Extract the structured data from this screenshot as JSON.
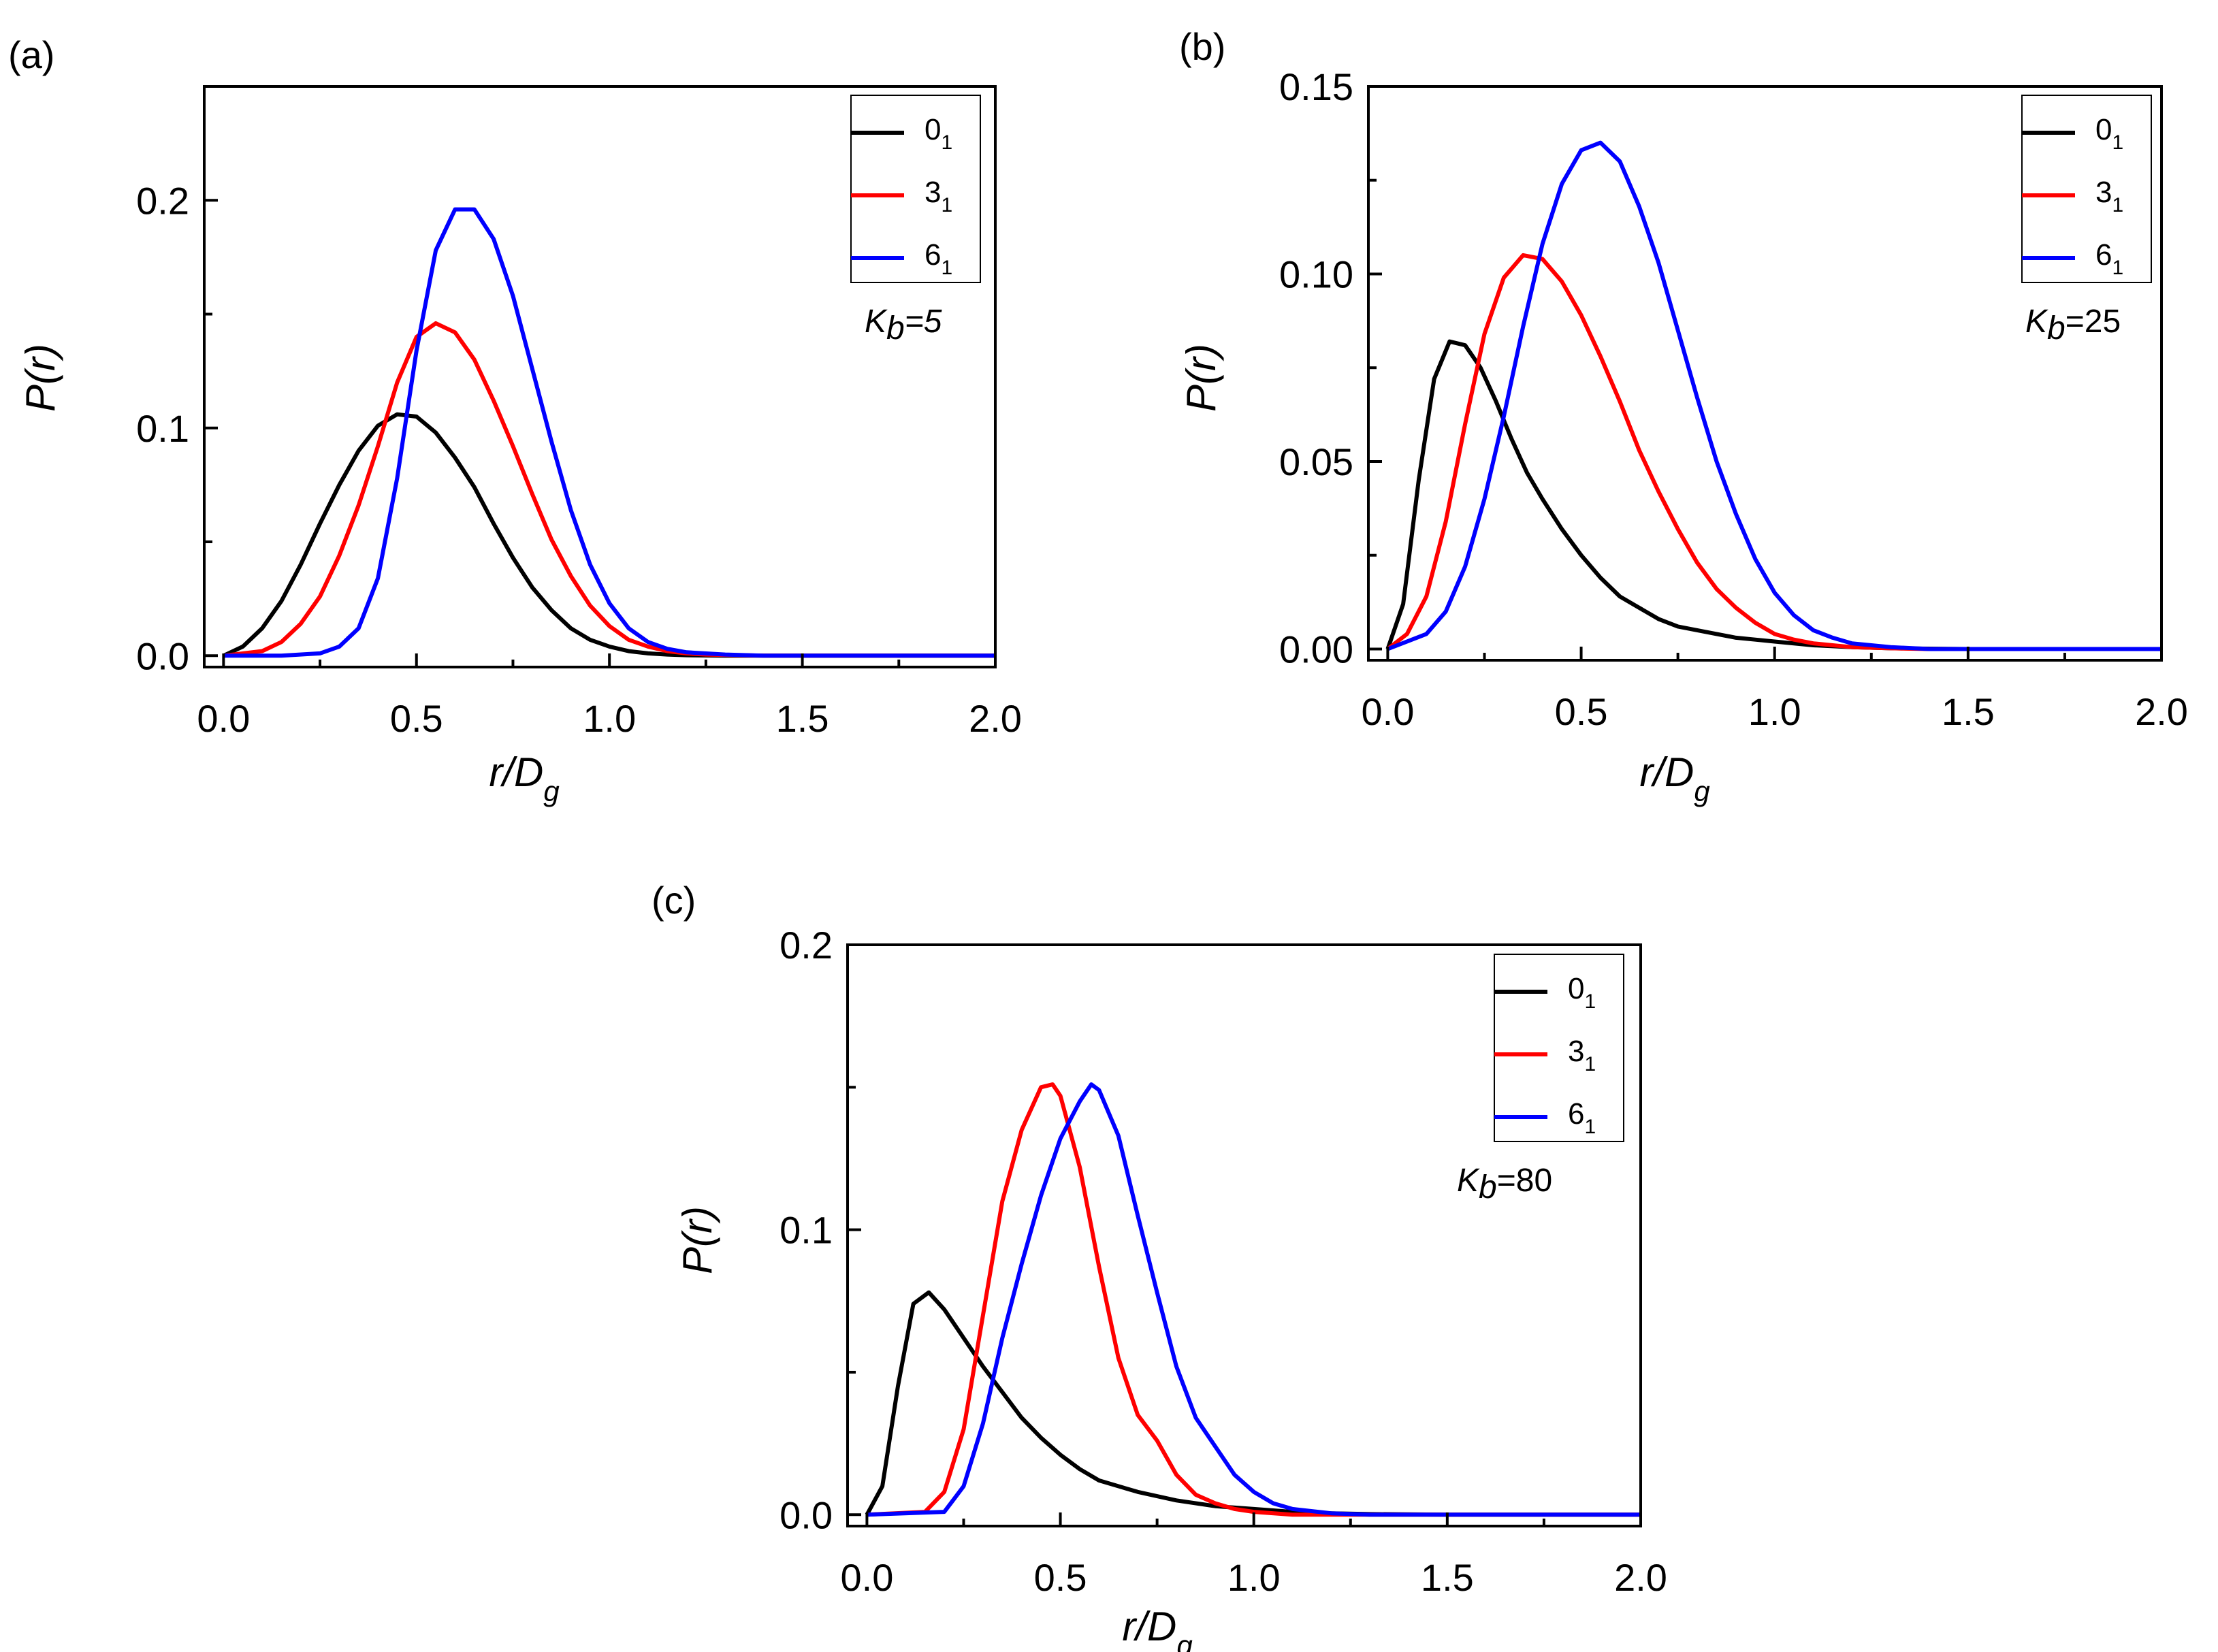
{
  "colors": {
    "series_0": "#000000",
    "series_1": "#ff0000",
    "series_2": "#0000ff",
    "axis": "#000000"
  },
  "chart_data": [
    {
      "id": "a",
      "panel_label": "(a)",
      "type": "line",
      "title": "",
      "xlabel": "r/D",
      "xlabel_sub": "g",
      "ylabel": "P(r)",
      "xlim": [
        -0.05,
        2.0
      ],
      "ylim": [
        -0.005,
        0.25
      ],
      "xticks": [
        0.0,
        0.5,
        1.0,
        1.5,
        2.0
      ],
      "xtick_labels": [
        "0.0",
        "0.5",
        "1.0",
        "1.5",
        "2.0"
      ],
      "yticks": [
        0.0,
        0.1,
        0.2
      ],
      "ytick_labels": [
        "0.0",
        "0.1",
        "0.2"
      ],
      "ymidticks": [
        0.05,
        0.15
      ],
      "kb_label": {
        "main": "K",
        "sub": "b",
        "rest": "=5",
        "rest_italic": true
      },
      "series": [
        {
          "name": "0",
          "name_sub": "1",
          "color": "#000000",
          "x": [
            0.0,
            0.05,
            0.1,
            0.15,
            0.2,
            0.25,
            0.3,
            0.35,
            0.4,
            0.45,
            0.5,
            0.55,
            0.6,
            0.65,
            0.7,
            0.75,
            0.8,
            0.85,
            0.9,
            0.95,
            1.0,
            1.05,
            1.1,
            1.15,
            1.2,
            1.3,
            1.4,
            1.6,
            2.0
          ],
          "y": [
            0.0,
            0.004,
            0.012,
            0.024,
            0.04,
            0.058,
            0.075,
            0.09,
            0.101,
            0.106,
            0.105,
            0.098,
            0.087,
            0.074,
            0.058,
            0.043,
            0.03,
            0.02,
            0.012,
            0.007,
            0.004,
            0.002,
            0.001,
            0.0005,
            0.0002,
            0.0,
            0.0,
            0.0,
            0.0
          ]
        },
        {
          "name": "3",
          "name_sub": "1",
          "color": "#ff0000",
          "x": [
            0.0,
            0.1,
            0.15,
            0.2,
            0.25,
            0.3,
            0.35,
            0.4,
            0.45,
            0.5,
            0.55,
            0.6,
            0.65,
            0.7,
            0.75,
            0.8,
            0.85,
            0.9,
            0.95,
            1.0,
            1.05,
            1.1,
            1.15,
            1.2,
            1.25,
            1.4,
            2.0
          ],
          "y": [
            0.0,
            0.002,
            0.006,
            0.014,
            0.026,
            0.044,
            0.066,
            0.092,
            0.12,
            0.14,
            0.146,
            0.142,
            0.13,
            0.112,
            0.092,
            0.071,
            0.051,
            0.035,
            0.022,
            0.013,
            0.007,
            0.004,
            0.002,
            0.001,
            0.0005,
            0.0,
            0.0
          ]
        },
        {
          "name": "6",
          "name_sub": "1",
          "color": "#0000ff",
          "x": [
            0.0,
            0.15,
            0.25,
            0.3,
            0.35,
            0.4,
            0.45,
            0.5,
            0.55,
            0.6,
            0.65,
            0.7,
            0.75,
            0.8,
            0.85,
            0.9,
            0.95,
            1.0,
            1.05,
            1.1,
            1.15,
            1.2,
            1.3,
            1.4,
            2.0
          ],
          "y": [
            0.0,
            0.0,
            0.001,
            0.004,
            0.012,
            0.034,
            0.078,
            0.134,
            0.178,
            0.196,
            0.196,
            0.183,
            0.158,
            0.126,
            0.094,
            0.064,
            0.04,
            0.023,
            0.012,
            0.006,
            0.003,
            0.0015,
            0.0005,
            0.0,
            0.0
          ]
        }
      ]
    },
    {
      "id": "b",
      "panel_label": "(b)",
      "type": "line",
      "title": "",
      "xlabel": "r/D",
      "xlabel_sub": "g",
      "ylabel": "P(r)",
      "xlim": [
        -0.05,
        2.0
      ],
      "ylim": [
        -0.003,
        0.15
      ],
      "xticks": [
        0.0,
        0.5,
        1.0,
        1.5,
        2.0
      ],
      "xtick_labels": [
        "0.0",
        "0.5",
        "1.0",
        "1.5",
        "2.0"
      ],
      "yticks": [
        0.0,
        0.05,
        0.1,
        0.15
      ],
      "ytick_labels": [
        "0.00",
        "0.05",
        "0.10",
        "0.15"
      ],
      "ymidticks": [
        0.025,
        0.075,
        0.125
      ],
      "kb_label": {
        "main": "K",
        "sub": "b",
        "rest": "=25",
        "rest_italic": false
      },
      "series": [
        {
          "name": "0",
          "name_sub": "1",
          "color": "#000000",
          "x": [
            0.0,
            0.04,
            0.08,
            0.12,
            0.16,
            0.2,
            0.24,
            0.28,
            0.32,
            0.36,
            0.4,
            0.45,
            0.5,
            0.55,
            0.6,
            0.65,
            0.7,
            0.75,
            0.8,
            0.85,
            0.9,
            0.95,
            1.0,
            1.1,
            1.2,
            1.3,
            1.5,
            2.0
          ],
          "y": [
            0.0,
            0.012,
            0.045,
            0.072,
            0.082,
            0.081,
            0.075,
            0.066,
            0.056,
            0.047,
            0.04,
            0.032,
            0.025,
            0.019,
            0.014,
            0.011,
            0.008,
            0.006,
            0.005,
            0.004,
            0.003,
            0.0025,
            0.002,
            0.001,
            0.0005,
            0.0002,
            0.0,
            0.0
          ]
        },
        {
          "name": "3",
          "name_sub": "1",
          "color": "#ff0000",
          "x": [
            0.0,
            0.05,
            0.1,
            0.15,
            0.2,
            0.25,
            0.3,
            0.35,
            0.4,
            0.45,
            0.5,
            0.55,
            0.6,
            0.65,
            0.7,
            0.75,
            0.8,
            0.85,
            0.9,
            0.95,
            1.0,
            1.05,
            1.1,
            1.15,
            1.2,
            1.3,
            1.4,
            2.0
          ],
          "y": [
            0.0,
            0.004,
            0.014,
            0.034,
            0.06,
            0.084,
            0.099,
            0.105,
            0.104,
            0.098,
            0.089,
            0.078,
            0.066,
            0.053,
            0.042,
            0.032,
            0.023,
            0.016,
            0.011,
            0.007,
            0.004,
            0.0025,
            0.0015,
            0.001,
            0.0005,
            0.0002,
            0.0,
            0.0
          ]
        },
        {
          "name": "6",
          "name_sub": "1",
          "color": "#0000ff",
          "x": [
            0.0,
            0.1,
            0.15,
            0.2,
            0.25,
            0.3,
            0.35,
            0.4,
            0.45,
            0.5,
            0.55,
            0.6,
            0.65,
            0.7,
            0.75,
            0.8,
            0.85,
            0.9,
            0.95,
            1.0,
            1.05,
            1.1,
            1.15,
            1.2,
            1.3,
            1.4,
            2.0
          ],
          "y": [
            0.0,
            0.004,
            0.01,
            0.022,
            0.04,
            0.062,
            0.086,
            0.108,
            0.124,
            0.133,
            0.135,
            0.13,
            0.118,
            0.103,
            0.085,
            0.067,
            0.05,
            0.036,
            0.024,
            0.015,
            0.009,
            0.005,
            0.003,
            0.0015,
            0.0005,
            0.0,
            0.0
          ]
        }
      ]
    },
    {
      "id": "c",
      "panel_label": "(c)",
      "type": "line",
      "title": "",
      "xlabel": "r/D",
      "xlabel_sub": "g",
      "ylabel": "P(r)",
      "xlim": [
        -0.05,
        2.0
      ],
      "ylim": [
        -0.004,
        0.2
      ],
      "xticks": [
        0.0,
        0.5,
        1.0,
        1.5,
        2.0
      ],
      "xtick_labels": [
        "0.0",
        "0.5",
        "1.0",
        "1.5",
        "2.0"
      ],
      "yticks": [
        0.0,
        0.1,
        0.2
      ],
      "ytick_labels": [
        "0.0",
        "0.1",
        "0.2"
      ],
      "ymidticks": [
        0.05,
        0.15
      ],
      "kb_label": {
        "main": "K",
        "sub": "b",
        "rest": "=80",
        "rest_italic": false
      },
      "series": [
        {
          "name": "0",
          "name_sub": "1",
          "color": "#000000",
          "x": [
            0.0,
            0.04,
            0.08,
            0.12,
            0.16,
            0.2,
            0.25,
            0.3,
            0.35,
            0.4,
            0.45,
            0.5,
            0.55,
            0.6,
            0.7,
            0.8,
            0.9,
            1.0,
            1.1,
            1.2,
            1.3,
            1.5,
            2.0
          ],
          "y": [
            0.0,
            0.01,
            0.045,
            0.074,
            0.078,
            0.072,
            0.062,
            0.052,
            0.043,
            0.034,
            0.027,
            0.021,
            0.016,
            0.012,
            0.008,
            0.005,
            0.003,
            0.002,
            0.001,
            0.0005,
            0.0002,
            0.0,
            0.0
          ]
        },
        {
          "name": "3",
          "name_sub": "1",
          "color": "#ff0000",
          "x": [
            0.0,
            0.15,
            0.2,
            0.25,
            0.3,
            0.35,
            0.4,
            0.45,
            0.48,
            0.5,
            0.55,
            0.6,
            0.65,
            0.7,
            0.75,
            0.8,
            0.85,
            0.9,
            0.95,
            1.0,
            1.1,
            1.2,
            2.0
          ],
          "y": [
            0.0,
            0.001,
            0.008,
            0.03,
            0.07,
            0.11,
            0.135,
            0.15,
            0.151,
            0.147,
            0.122,
            0.087,
            0.055,
            0.035,
            0.026,
            0.014,
            0.007,
            0.004,
            0.002,
            0.001,
            0.0,
            0.0,
            0.0
          ]
        },
        {
          "name": "6",
          "name_sub": "1",
          "color": "#0000ff",
          "x": [
            0.0,
            0.2,
            0.25,
            0.3,
            0.35,
            0.4,
            0.45,
            0.5,
            0.55,
            0.58,
            0.6,
            0.65,
            0.7,
            0.75,
            0.8,
            0.85,
            0.9,
            0.95,
            1.0,
            1.05,
            1.1,
            1.2,
            1.3,
            2.0
          ],
          "y": [
            0.0,
            0.001,
            0.01,
            0.032,
            0.062,
            0.088,
            0.112,
            0.132,
            0.145,
            0.151,
            0.149,
            0.133,
            0.105,
            0.078,
            0.052,
            0.034,
            0.024,
            0.014,
            0.008,
            0.004,
            0.002,
            0.0005,
            0.0,
            0.0
          ]
        }
      ]
    }
  ]
}
